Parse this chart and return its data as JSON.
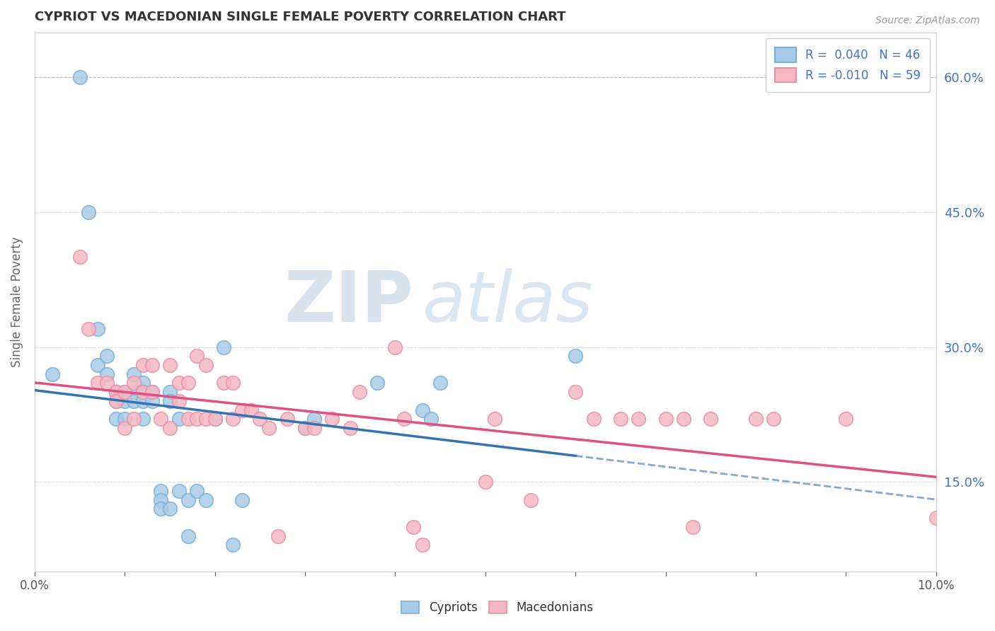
{
  "title": "CYPRIOT VS MACEDONIAN SINGLE FEMALE POVERTY CORRELATION CHART",
  "source": "Source: ZipAtlas.com",
  "ylabel": "Single Female Poverty",
  "xlim": [
    0.0,
    0.1
  ],
  "ylim": [
    0.05,
    0.65
  ],
  "yticks": [
    0.15,
    0.3,
    0.45,
    0.6
  ],
  "ytick_labels": [
    "15.0%",
    "30.0%",
    "45.0%",
    "60.0%"
  ],
  "xticks": [
    0.0,
    0.01,
    0.02,
    0.03,
    0.04,
    0.05,
    0.06,
    0.07,
    0.08,
    0.09,
    0.1
  ],
  "xtick_labels": [
    "0.0%",
    "",
    "",
    "",
    "",
    "",
    "",
    "",
    "",
    "",
    "10.0%"
  ],
  "cypriot_R": 0.04,
  "cypriot_N": 46,
  "macedonian_R": -0.01,
  "macedonian_N": 59,
  "cypriot_color": "#a8cce8",
  "macedonian_color": "#f5b8c4",
  "cypriot_edge_color": "#7aafd4",
  "macedonian_edge_color": "#e891a8",
  "cypriot_line_color": "#3572b0",
  "macedonian_line_color": "#e05080",
  "watermark_zip": "ZIP",
  "watermark_atlas": "atlas",
  "background_color": "#ffffff",
  "grid_color": "#e0e0e0",
  "cypriot_x": [
    0.002,
    0.005,
    0.006,
    0.007,
    0.007,
    0.008,
    0.008,
    0.009,
    0.009,
    0.009,
    0.009,
    0.01,
    0.01,
    0.01,
    0.011,
    0.011,
    0.011,
    0.012,
    0.012,
    0.012,
    0.012,
    0.013,
    0.013,
    0.014,
    0.014,
    0.014,
    0.015,
    0.015,
    0.015,
    0.016,
    0.016,
    0.017,
    0.017,
    0.018,
    0.019,
    0.02,
    0.021,
    0.022,
    0.023,
    0.03,
    0.031,
    0.038,
    0.043,
    0.044,
    0.045,
    0.06
  ],
  "cypriot_y": [
    0.27,
    0.6,
    0.45,
    0.32,
    0.28,
    0.29,
    0.27,
    0.25,
    0.25,
    0.24,
    0.22,
    0.25,
    0.24,
    0.22,
    0.27,
    0.25,
    0.24,
    0.26,
    0.25,
    0.24,
    0.22,
    0.25,
    0.24,
    0.14,
    0.13,
    0.12,
    0.25,
    0.24,
    0.12,
    0.22,
    0.14,
    0.13,
    0.09,
    0.14,
    0.13,
    0.22,
    0.3,
    0.08,
    0.13,
    0.21,
    0.22,
    0.26,
    0.23,
    0.22,
    0.26,
    0.29
  ],
  "macedonian_x": [
    0.005,
    0.006,
    0.007,
    0.008,
    0.009,
    0.009,
    0.01,
    0.01,
    0.011,
    0.011,
    0.012,
    0.012,
    0.013,
    0.013,
    0.014,
    0.015,
    0.015,
    0.016,
    0.016,
    0.017,
    0.017,
    0.018,
    0.018,
    0.019,
    0.019,
    0.02,
    0.021,
    0.022,
    0.022,
    0.023,
    0.024,
    0.025,
    0.026,
    0.027,
    0.028,
    0.03,
    0.031,
    0.033,
    0.035,
    0.036,
    0.04,
    0.041,
    0.042,
    0.043,
    0.05,
    0.051,
    0.055,
    0.06,
    0.062,
    0.065,
    0.067,
    0.07,
    0.072,
    0.073,
    0.075,
    0.08,
    0.082,
    0.09,
    0.1
  ],
  "macedonian_y": [
    0.4,
    0.32,
    0.26,
    0.26,
    0.25,
    0.24,
    0.25,
    0.21,
    0.26,
    0.22,
    0.28,
    0.25,
    0.28,
    0.25,
    0.22,
    0.28,
    0.21,
    0.26,
    0.24,
    0.26,
    0.22,
    0.29,
    0.22,
    0.28,
    0.22,
    0.22,
    0.26,
    0.26,
    0.22,
    0.23,
    0.23,
    0.22,
    0.21,
    0.09,
    0.22,
    0.21,
    0.21,
    0.22,
    0.21,
    0.25,
    0.3,
    0.22,
    0.1,
    0.08,
    0.15,
    0.22,
    0.13,
    0.25,
    0.22,
    0.22,
    0.22,
    0.22,
    0.22,
    0.1,
    0.22,
    0.22,
    0.22,
    0.22,
    0.11
  ]
}
